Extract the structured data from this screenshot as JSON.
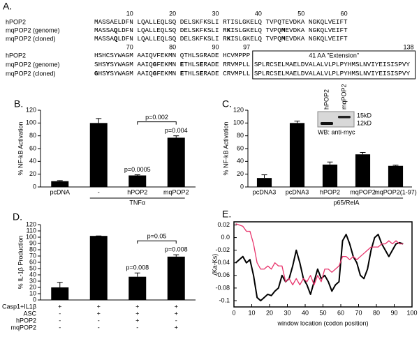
{
  "panel_labels": [
    "A.",
    "B.",
    "C.",
    "D.",
    "E."
  ],
  "alignment": {
    "blocks": [
      {
        "numbers": [
          10,
          20,
          30,
          40,
          50,
          60
        ],
        "lines": [
          {
            "name": "hPOP2",
            "segments": [
              {
                "text": "MASSAELDFN LQALLEQLSQ DELSKFKSLI RTISLGKELQ TVPQTEVDKA NGKQLVEIFT"
              }
            ]
          },
          {
            "name": "mqPOP2 (genome)",
            "segments": [
              {
                "text": "MASSA"
              },
              {
                "text": "Q",
                "bold": true
              },
              {
                "text": "LDFN LQALLEQLSQ DELSKFKSLI R"
              },
              {
                "text": "K",
                "bold": true
              },
              {
                "text": "ISLGKELQ TVPQ"
              },
              {
                "text": "M",
                "bold": true
              },
              {
                "text": "EVDKA NGKQLVEIFT"
              }
            ]
          },
          {
            "name": "mqPOP2 (cloned)",
            "segments": [
              {
                "text": "MASSA"
              },
              {
                "text": "Q",
                "bold": true
              },
              {
                "text": "LDFN LQALLEQLSQ DELSKFKSLI R"
              },
              {
                "text": "K",
                "bold": true
              },
              {
                "text": "ISLGKELQ TVPQ"
              },
              {
                "text": "M",
                "bold": true
              },
              {
                "text": "EVDKA NGKQLVEIFT"
              }
            ]
          }
        ]
      },
      {
        "numbers": [
          70,
          80,
          90,
          97,
          138
        ],
        "extension_label": "41 AA \"Extension\"",
        "lines": [
          {
            "name": "hPOP2",
            "segments": [
              {
                "text": "HSHCSYWAGM AAIQVFEKMN QTHLSGRADE HCVMPPP"
              }
            ]
          },
          {
            "name": "mqPOP2 (genome)",
            "segments": [
              {
                "text": "SHS"
              },
              {
                "text": "Y",
                "bold": true
              },
              {
                "text": "SYWAGM AAIQ"
              },
              {
                "text": "G",
                "bold": true
              },
              {
                "text": "FEKMN "
              },
              {
                "text": "E",
                "bold": true
              },
              {
                "text": "THLS"
              },
              {
                "text": "E",
                "bold": true
              },
              {
                "text": "RADE RRVMPLL SPLRCSELMAELDVALALVLPLPYHMSLNVIYEISISPVY"
              }
            ]
          },
          {
            "name": "mqPOP2 (cloned)",
            "segments": [
              {
                "text": "G",
                "bold": true
              },
              {
                "text": "HS"
              },
              {
                "text": "Y",
                "bold": true
              },
              {
                "text": "SYWAGM AAIQ"
              },
              {
                "text": "G",
                "bold": true
              },
              {
                "text": "FEKMN "
              },
              {
                "text": "E",
                "bold": true
              },
              {
                "text": "THLS"
              },
              {
                "text": "E",
                "bold": true
              },
              {
                "text": "RADE CRVMPLL SPLRCSELMAELDVALALVLPLPYHMSLNVIYEISISPVY"
              }
            ]
          }
        ]
      }
    ]
  },
  "chart_data": [
    {
      "type": "bar",
      "ylabel": "% NF-kB Activation",
      "color": "#000000",
      "categories": [
        "pcDNA",
        "-",
        "hPOP2",
        "mqPOP2"
      ],
      "values": [
        9,
        100,
        18,
        77
      ],
      "errors": [
        1,
        7,
        1,
        3
      ],
      "ylim": [
        0,
        120
      ],
      "yticks": [
        0,
        20,
        40,
        60,
        80,
        100,
        120
      ],
      "group_label": "TNFα",
      "bar_notes": [
        null,
        null,
        "p=0.0005",
        "p=0.004"
      ],
      "bracket_note": "p=0.002"
    },
    {
      "type": "bar",
      "ylabel": "% NF-kB Activation",
      "color": "#000000",
      "categories": [
        "pcDNA3",
        "pcDNA3",
        "hPOP2",
        "mqPOP2",
        "mqPOP2(1-97)"
      ],
      "values": [
        14,
        100,
        35,
        51,
        33
      ],
      "errors": [
        5,
        3,
        4,
        3,
        1
      ],
      "ylim": [
        0,
        120
      ],
      "yticks": [
        0,
        20,
        40,
        60,
        80,
        100,
        120
      ],
      "group_label": "p65/RelA",
      "inset": {
        "lanes": [
          "hPOP2",
          "mqPOP2"
        ],
        "markers": [
          "15kD",
          "12kD"
        ],
        "caption": "WB: anti-myc"
      }
    },
    {
      "type": "bar",
      "ylabel": "% IL-1β Production",
      "color": "#000000",
      "categories": [
        null,
        null,
        null,
        null
      ],
      "values": [
        20,
        102,
        37,
        69
      ],
      "errors": [
        8,
        0,
        6,
        3
      ],
      "ylim": [
        0,
        120
      ],
      "yticks": [
        0,
        10,
        20,
        30,
        40,
        50,
        60,
        70,
        80,
        90,
        100,
        110,
        120
      ],
      "bar_notes": [
        null,
        null,
        "p=0.008",
        "p=0.008"
      ],
      "bracket_note": "p=0.05",
      "condition_rows": [
        {
          "label": "Casp1+IL1β",
          "signs": [
            "+",
            "+",
            "+",
            "+"
          ]
        },
        {
          "label": "ASC",
          "signs": [
            "-",
            "+",
            "+",
            "+"
          ]
        },
        {
          "label": "hPOP2",
          "signs": [
            "-",
            "-",
            "+",
            "-"
          ]
        },
        {
          "label": "mqPOP2",
          "signs": [
            "-",
            "-",
            "-",
            "+"
          ]
        }
      ]
    },
    {
      "type": "line",
      "ylabel": "(Ka-Ks)",
      "xlabel": "window location (codon position)",
      "x": [
        1,
        3,
        5,
        7,
        9,
        11,
        13,
        15,
        17,
        19,
        21,
        23,
        25,
        27,
        29,
        31,
        33,
        35,
        37,
        39,
        41,
        43,
        45,
        47,
        49,
        51,
        53,
        55,
        57,
        59,
        61,
        63,
        65,
        67,
        69,
        71,
        73,
        75,
        77,
        79,
        81,
        83,
        85,
        87,
        89,
        91,
        93,
        95
      ],
      "series": [
        {
          "color": "#000000",
          "values": [
            -0.04,
            -0.035,
            -0.03,
            -0.04,
            -0.035,
            -0.06,
            -0.095,
            -0.1,
            -0.095,
            -0.09,
            -0.092,
            -0.085,
            -0.08,
            -0.06,
            -0.07,
            -0.065,
            -0.045,
            -0.02,
            -0.04,
            -0.065,
            -0.075,
            -0.09,
            -0.07,
            -0.05,
            -0.065,
            -0.06,
            -0.07,
            -0.085,
            -0.075,
            -0.07,
            -0.005,
            0.005,
            -0.01,
            -0.03,
            -0.04,
            -0.06,
            -0.065,
            -0.05,
            -0.02,
            0,
            0.005,
            -0.01,
            -0.02,
            -0.03,
            -0.02,
            -0.01,
            -0.008,
            -0.01
          ]
        },
        {
          "color": "#e8336b",
          "values": [
            0.022,
            0.02,
            0.018,
            0.01,
            0.01,
            -0.01,
            -0.04,
            -0.05,
            -0.05,
            -0.045,
            -0.05,
            -0.04,
            -0.045,
            -0.045,
            -0.07,
            -0.065,
            -0.075,
            -0.065,
            -0.075,
            -0.065,
            -0.07,
            -0.06,
            -0.075,
            -0.06,
            -0.07,
            -0.05,
            -0.05,
            -0.055,
            -0.05,
            -0.045,
            -0.03,
            -0.03,
            -0.035,
            -0.03,
            -0.035,
            -0.03,
            -0.025,
            -0.02,
            -0.015,
            -0.015,
            -0.015,
            -0.01,
            -0.01,
            -0.005,
            -0.01,
            -0.005,
            -0.01,
            -0.01
          ]
        }
      ],
      "xlim": [
        0,
        100
      ],
      "xticks": [
        0,
        10,
        20,
        30,
        40,
        50,
        60,
        70,
        80,
        90,
        100
      ],
      "ylim": [
        -0.11,
        0.025
      ],
      "yticks": [
        0.02,
        {
          "value": 0,
          "label": "0.0"
        },
        -0.02,
        -0.04,
        -0.06,
        -0.08,
        -0.1
      ]
    }
  ]
}
